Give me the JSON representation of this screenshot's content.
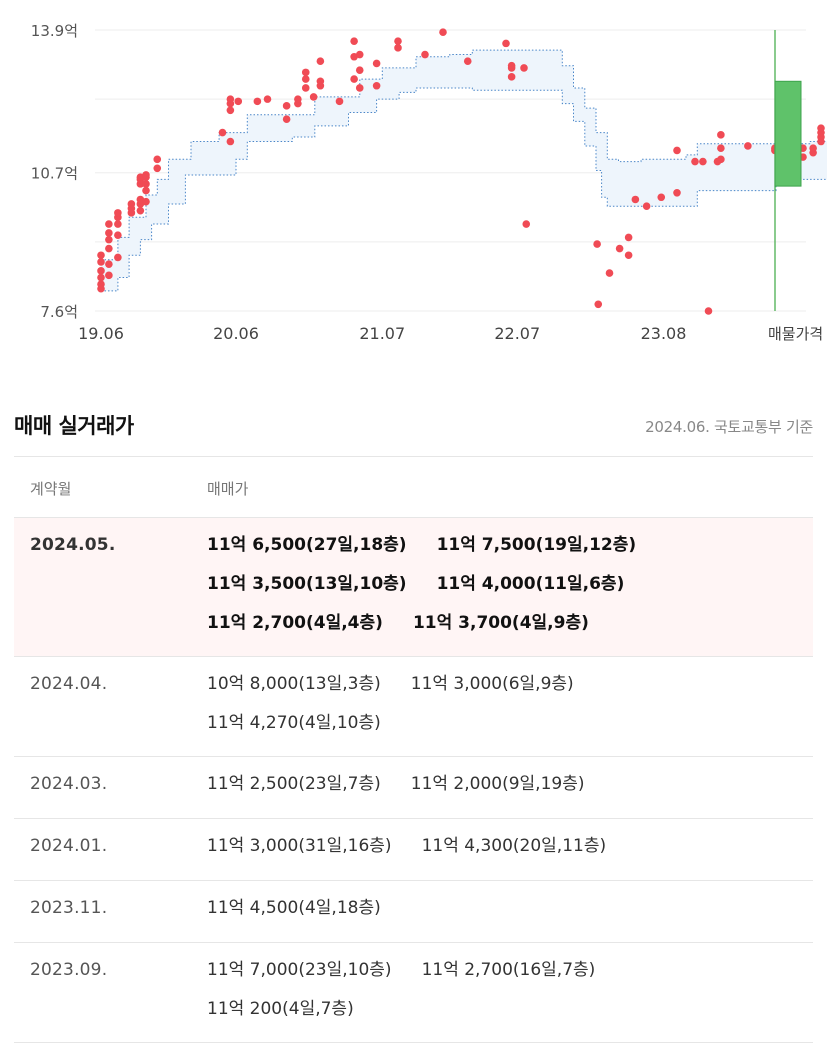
{
  "chart_data": {
    "type": "scatter",
    "y_ticks": [
      "13.9억",
      "10.7억",
      "7.6억"
    ],
    "y_tick_values": [
      13.9,
      10.7,
      7.6
    ],
    "ylim": [
      7.6,
      13.9
    ],
    "x_ticks": [
      "19.06",
      "20.06",
      "21.07",
      "22.07",
      "23.08"
    ],
    "x_tick_months": [
      0,
      12,
      25,
      37,
      50
    ],
    "x_end_label": "매물가격",
    "grid": true,
    "colors": {
      "points": "#f04b55",
      "band_fill": "#eef5fc",
      "band_border": "#4a86c8",
      "bar": "#5fc26a",
      "bar_border": "#3ea34c",
      "grid": "#eeeeee",
      "axis_line": "#4caf50"
    },
    "points": [
      [
        0.0,
        8.2
      ],
      [
        0.0,
        8.1
      ],
      [
        0.0,
        8.35
      ],
      [
        0.0,
        8.5
      ],
      [
        0.0,
        8.7
      ],
      [
        0.0,
        8.85
      ],
      [
        0.7,
        8.4
      ],
      [
        0.7,
        8.65
      ],
      [
        0.7,
        9.0
      ],
      [
        0.7,
        9.2
      ],
      [
        0.7,
        9.35
      ],
      [
        0.7,
        9.55
      ],
      [
        1.5,
        8.8
      ],
      [
        1.5,
        9.3
      ],
      [
        1.5,
        9.55
      ],
      [
        1.5,
        9.7
      ],
      [
        1.5,
        9.8
      ],
      [
        2.7,
        9.8
      ],
      [
        2.7,
        9.9
      ],
      [
        2.7,
        10.0
      ],
      [
        3.5,
        9.85
      ],
      [
        3.5,
        10.0
      ],
      [
        3.5,
        10.1
      ],
      [
        3.5,
        10.45
      ],
      [
        3.5,
        10.55
      ],
      [
        3.5,
        10.6
      ],
      [
        4.0,
        10.05
      ],
      [
        4.0,
        10.3
      ],
      [
        4.0,
        10.45
      ],
      [
        4.0,
        10.6
      ],
      [
        4.0,
        10.65
      ],
      [
        5.0,
        10.8
      ],
      [
        5.0,
        11.0
      ],
      [
        10.8,
        11.6
      ],
      [
        11.5,
        11.4
      ],
      [
        11.5,
        12.1
      ],
      [
        11.5,
        12.25
      ],
      [
        11.5,
        12.35
      ],
      [
        12.2,
        12.3
      ],
      [
        13.9,
        12.3
      ],
      [
        14.8,
        12.35
      ],
      [
        16.5,
        11.9
      ],
      [
        16.5,
        12.2
      ],
      [
        17.5,
        12.25
      ],
      [
        17.5,
        12.35
      ],
      [
        18.2,
        12.6
      ],
      [
        18.2,
        12.8
      ],
      [
        18.2,
        12.95
      ],
      [
        18.9,
        12.4
      ],
      [
        19.5,
        12.65
      ],
      [
        19.5,
        12.75
      ],
      [
        19.5,
        13.2
      ],
      [
        21.2,
        12.3
      ],
      [
        22.5,
        12.8
      ],
      [
        22.5,
        13.3
      ],
      [
        22.5,
        13.65
      ],
      [
        23.0,
        12.6
      ],
      [
        23.0,
        13.0
      ],
      [
        23.0,
        13.35
      ],
      [
        24.5,
        12.65
      ],
      [
        24.5,
        13.15
      ],
      [
        26.4,
        13.5
      ],
      [
        26.4,
        13.65
      ],
      [
        28.8,
        13.35
      ],
      [
        30.4,
        13.85
      ],
      [
        32.6,
        13.2
      ],
      [
        36.0,
        13.6
      ],
      [
        36.5,
        12.85
      ],
      [
        36.5,
        13.05
      ],
      [
        36.5,
        13.1
      ],
      [
        37.6,
        13.05
      ],
      [
        37.8,
        9.55
      ],
      [
        44.1,
        9.1
      ],
      [
        44.2,
        7.75
      ],
      [
        45.2,
        8.45
      ],
      [
        46.1,
        9.0
      ],
      [
        46.9,
        8.85
      ],
      [
        46.9,
        9.25
      ],
      [
        47.5,
        10.1
      ],
      [
        48.5,
        9.95
      ],
      [
        49.8,
        10.15
      ],
      [
        51.2,
        10.25
      ],
      [
        51.2,
        11.2
      ],
      [
        52.8,
        10.95
      ],
      [
        53.5,
        10.95
      ],
      [
        54.0,
        7.6
      ],
      [
        54.8,
        10.95
      ],
      [
        55.1,
        11.0
      ],
      [
        55.1,
        11.25
      ],
      [
        55.1,
        11.55
      ],
      [
        57.5,
        11.3
      ],
      [
        59.9,
        11.2
      ],
      [
        59.9,
        11.25
      ],
      [
        61.8,
        10.8
      ],
      [
        62.4,
        11.05
      ],
      [
        62.4,
        11.25
      ],
      [
        63.3,
        11.15
      ],
      [
        63.3,
        11.25
      ],
      [
        64.0,
        11.4
      ],
      [
        64.0,
        11.5
      ],
      [
        64.0,
        11.6
      ],
      [
        64.0,
        11.7
      ]
    ],
    "listing_price_range": [
      10.4,
      12.75
    ]
  },
  "section": {
    "title": "매매 실거래가",
    "source": "2024.06. 국토교통부 기준"
  },
  "table": {
    "headers": {
      "month": "계약월",
      "price": "매매가"
    },
    "rows": [
      {
        "month": "2024.05.",
        "highlight": true,
        "lines": [
          [
            "11억 6,500(27일,18층)",
            "11억 7,500(19일,12층)"
          ],
          [
            "11억 3,500(13일,10층)",
            "11억 4,000(11일,6층)"
          ],
          [
            "11억 2,700(4일,4층)",
            "11억 3,700(4일,9층)"
          ]
        ]
      },
      {
        "month": "2024.04.",
        "highlight": false,
        "lines": [
          [
            "10억 8,000(13일,3층)",
            "11억 3,000(6일,9층)"
          ],
          [
            "11억 4,270(4일,10층)"
          ]
        ]
      },
      {
        "month": "2024.03.",
        "highlight": false,
        "lines": [
          [
            "11억 2,500(23일,7층)",
            "11억 2,000(9일,19층)"
          ]
        ]
      },
      {
        "month": "2024.01.",
        "highlight": false,
        "lines": [
          [
            "11억 3,000(31일,16층)",
            "11억 4,300(20일,11층)"
          ]
        ]
      },
      {
        "month": "2023.11.",
        "highlight": false,
        "lines": [
          [
            "11억 4,500(4일,18층)"
          ]
        ]
      },
      {
        "month": "2023.09.",
        "highlight": false,
        "lines": [
          [
            "11억 7,000(23일,10층)",
            "11억 2,700(16일,7층)"
          ],
          [
            "11억 200(4일,7층)"
          ]
        ]
      }
    ]
  }
}
